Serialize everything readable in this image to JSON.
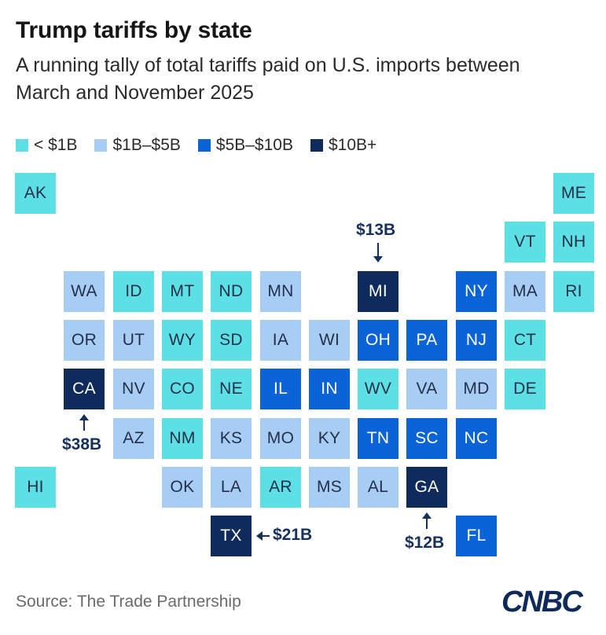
{
  "title": "Trump tariffs by state",
  "subtitle": "A running tally of total tariffs paid on U.S. imports between March and November 2025",
  "source": "Source: The Trade Partnership",
  "logo_text": "CNBC",
  "chart_data": {
    "type": "heatmap",
    "title": "Trump tariffs by state",
    "subtitle": "A running tally of total tariffs paid on U.S. imports between March and November 2025",
    "legend": [
      {
        "label": "< $1B",
        "color": "#5ce0e6"
      },
      {
        "label": "$1B–$5B",
        "color": "#a8cdf5"
      },
      {
        "label": "$5B–$10B",
        "color": "#0b63d8"
      },
      {
        "label": "$10B+",
        "color": "#0f2a5c"
      }
    ],
    "tiles": [
      {
        "state": "AK",
        "col": 0,
        "row": 0,
        "bin": 0
      },
      {
        "state": "ME",
        "col": 11,
        "row": 0,
        "bin": 0
      },
      {
        "state": "VT",
        "col": 10,
        "row": 1,
        "bin": 0
      },
      {
        "state": "NH",
        "col": 11,
        "row": 1,
        "bin": 0
      },
      {
        "state": "WA",
        "col": 1,
        "row": 2,
        "bin": 1
      },
      {
        "state": "ID",
        "col": 2,
        "row": 2,
        "bin": 0
      },
      {
        "state": "MT",
        "col": 3,
        "row": 2,
        "bin": 0
      },
      {
        "state": "ND",
        "col": 4,
        "row": 2,
        "bin": 0
      },
      {
        "state": "MN",
        "col": 5,
        "row": 2,
        "bin": 1
      },
      {
        "state": "MI",
        "col": 7,
        "row": 2,
        "bin": 3
      },
      {
        "state": "NY",
        "col": 9,
        "row": 2,
        "bin": 2
      },
      {
        "state": "MA",
        "col": 10,
        "row": 2,
        "bin": 1
      },
      {
        "state": "RI",
        "col": 11,
        "row": 2,
        "bin": 0
      },
      {
        "state": "OR",
        "col": 1,
        "row": 3,
        "bin": 1
      },
      {
        "state": "UT",
        "col": 2,
        "row": 3,
        "bin": 1
      },
      {
        "state": "WY",
        "col": 3,
        "row": 3,
        "bin": 0
      },
      {
        "state": "SD",
        "col": 4,
        "row": 3,
        "bin": 0
      },
      {
        "state": "IA",
        "col": 5,
        "row": 3,
        "bin": 1
      },
      {
        "state": "WI",
        "col": 6,
        "row": 3,
        "bin": 1
      },
      {
        "state": "OH",
        "col": 7,
        "row": 3,
        "bin": 2
      },
      {
        "state": "PA",
        "col": 8,
        "row": 3,
        "bin": 2
      },
      {
        "state": "NJ",
        "col": 9,
        "row": 3,
        "bin": 2
      },
      {
        "state": "CT",
        "col": 10,
        "row": 3,
        "bin": 0
      },
      {
        "state": "CA",
        "col": 1,
        "row": 4,
        "bin": 3
      },
      {
        "state": "NV",
        "col": 2,
        "row": 4,
        "bin": 1
      },
      {
        "state": "CO",
        "col": 3,
        "row": 4,
        "bin": 0
      },
      {
        "state": "NE",
        "col": 4,
        "row": 4,
        "bin": 0
      },
      {
        "state": "IL",
        "col": 5,
        "row": 4,
        "bin": 2
      },
      {
        "state": "IN",
        "col": 6,
        "row": 4,
        "bin": 2
      },
      {
        "state": "WV",
        "col": 7,
        "row": 4,
        "bin": 0
      },
      {
        "state": "VA",
        "col": 8,
        "row": 4,
        "bin": 1
      },
      {
        "state": "MD",
        "col": 9,
        "row": 4,
        "bin": 1
      },
      {
        "state": "DE",
        "col": 10,
        "row": 4,
        "bin": 0
      },
      {
        "state": "AZ",
        "col": 2,
        "row": 5,
        "bin": 1
      },
      {
        "state": "NM",
        "col": 3,
        "row": 5,
        "bin": 0
      },
      {
        "state": "KS",
        "col": 4,
        "row": 5,
        "bin": 1
      },
      {
        "state": "MO",
        "col": 5,
        "row": 5,
        "bin": 1
      },
      {
        "state": "KY",
        "col": 6,
        "row": 5,
        "bin": 1
      },
      {
        "state": "TN",
        "col": 7,
        "row": 5,
        "bin": 2
      },
      {
        "state": "SC",
        "col": 8,
        "row": 5,
        "bin": 2
      },
      {
        "state": "NC",
        "col": 9,
        "row": 5,
        "bin": 2
      },
      {
        "state": "HI",
        "col": 0,
        "row": 6,
        "bin": 0
      },
      {
        "state": "OK",
        "col": 3,
        "row": 6,
        "bin": 1
      },
      {
        "state": "LA",
        "col": 4,
        "row": 6,
        "bin": 1
      },
      {
        "state": "AR",
        "col": 5,
        "row": 6,
        "bin": 0
      },
      {
        "state": "MS",
        "col": 6,
        "row": 6,
        "bin": 1
      },
      {
        "state": "AL",
        "col": 7,
        "row": 6,
        "bin": 1
      },
      {
        "state": "GA",
        "col": 8,
        "row": 6,
        "bin": 3
      },
      {
        "state": "TX",
        "col": 4,
        "row": 7,
        "bin": 3
      },
      {
        "state": "FL",
        "col": 9,
        "row": 7,
        "bin": 2
      }
    ],
    "annotations": [
      {
        "state": "MI",
        "label": "$13B",
        "value_billions": 13,
        "side": "top"
      },
      {
        "state": "CA",
        "label": "$38B",
        "value_billions": 38,
        "side": "bottom"
      },
      {
        "state": "TX",
        "label": "$21B",
        "value_billions": 21,
        "side": "right"
      },
      {
        "state": "GA",
        "label": "$12B",
        "value_billions": 12,
        "side": "bottom"
      }
    ],
    "label_colors": [
      "#233049",
      "#233049",
      "#ffffff",
      "#ffffff"
    ]
  }
}
